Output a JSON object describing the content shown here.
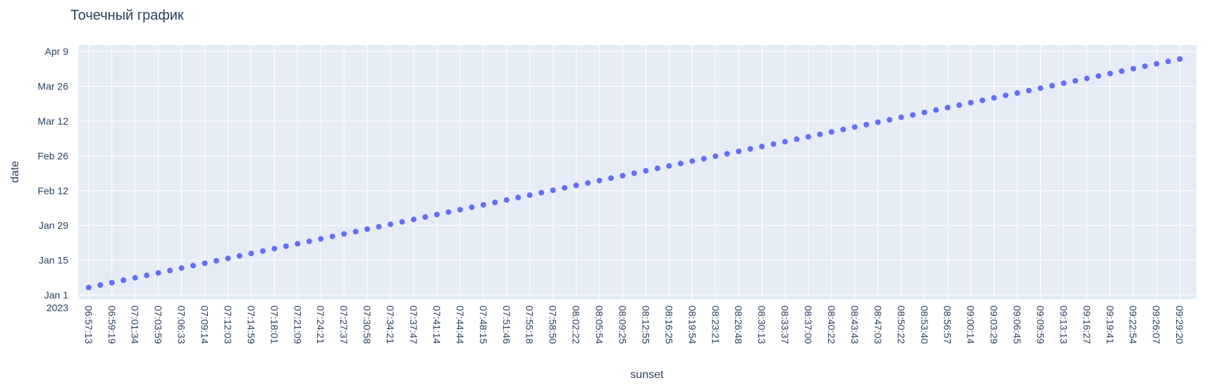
{
  "chart_data": {
    "type": "scatter",
    "title": "Точечный график",
    "xlabel": "sunset",
    "ylabel": "date",
    "marker_color": "#636efa",
    "plot_bg": "#e5ecf6",
    "grid": true,
    "x_tick_labels": [
      "06:57:13",
      "06:59:19",
      "07:01:34",
      "07:03:59",
      "07:06:33",
      "07:09:14",
      "07:12:03",
      "07:14:59",
      "07:18:01",
      "07:21:09",
      "07:24:21",
      "07:27:37",
      "07:30:58",
      "07:34:21",
      "07:37:47",
      "07:41:14",
      "07:44:44",
      "07:48:15",
      "07:51:46",
      "07:55:18",
      "07:58:50",
      "08:02:22",
      "08:05:54",
      "08:09:25",
      "08:12:55",
      "08:16:25",
      "08:19:54",
      "08:23:21",
      "08:26:48",
      "08:30:13",
      "08:33:37",
      "08:37:00",
      "08:40:22",
      "08:43:43",
      "08:47:03",
      "08:50:22",
      "08:53:40",
      "08:56:57",
      "09:00:14",
      "09:03:29",
      "09:06:45",
      "09:09:59",
      "09:13:13",
      "09:16:27",
      "09:19:41",
      "09:22:54",
      "09:26:07",
      "09:29:20"
    ],
    "y_ticks": [
      {
        "label": "Jan 1",
        "label2": "2023",
        "day": 0
      },
      {
        "label": "Jan 15",
        "day": 14
      },
      {
        "label": "Jan 29",
        "day": 28
      },
      {
        "label": "Feb 12",
        "day": 42
      },
      {
        "label": "Feb 26",
        "day": 56
      },
      {
        "label": "Mar 12",
        "day": 70
      },
      {
        "label": "Mar 26",
        "day": 84
      },
      {
        "label": "Apr 9",
        "day": 98
      }
    ],
    "series": [
      {
        "x_range": [
          "06:57:13",
          "09:29:20"
        ],
        "y_range": [
          "2023-01-04",
          "2023-04-06"
        ],
        "points": 95
      }
    ]
  }
}
